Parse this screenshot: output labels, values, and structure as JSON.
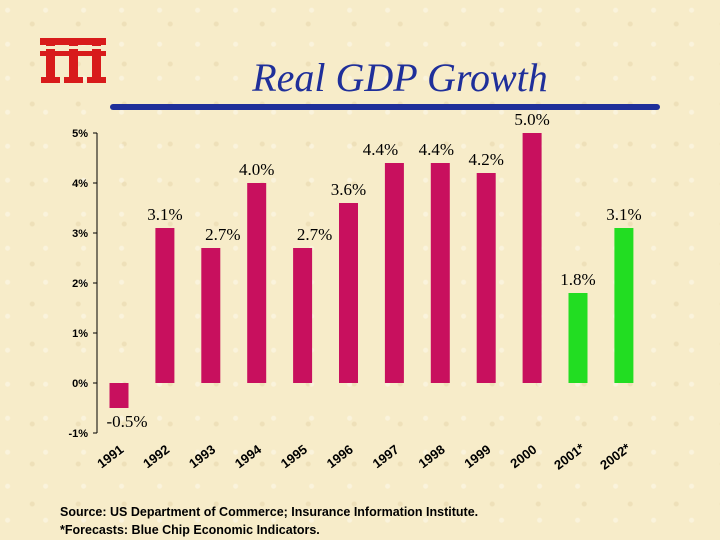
{
  "colors": {
    "background": "#f7ecc9",
    "title": "#1f2f9a",
    "actual_bar": "#c8105e",
    "forecast_bar": "#22dd22",
    "logo": "#d81b1b"
  },
  "logo": {
    "icon": "iii-logo"
  },
  "header": {
    "title": "Real GDP Growth"
  },
  "chart_data": {
    "type": "bar",
    "title": "Real GDP Growth",
    "xlabel": "",
    "ylabel": "",
    "ylim": [
      -1,
      5
    ],
    "yticks": [
      "5%",
      "4%",
      "3%",
      "2%",
      "1%",
      "0%",
      "-1%"
    ],
    "ytick_values": [
      5,
      4,
      3,
      2,
      1,
      0,
      -1
    ],
    "grid": false,
    "categories": [
      "1991",
      "1992",
      "1993",
      "1994",
      "1995",
      "1996",
      "1997",
      "1998",
      "1999",
      "2000",
      "2001*",
      "2002*"
    ],
    "values": [
      -0.5,
      3.1,
      2.7,
      4.0,
      2.7,
      3.6,
      4.4,
      4.4,
      4.2,
      5.0,
      1.8,
      3.1
    ],
    "data_labels": [
      "-0.5%",
      "3.1%",
      "2.7%",
      "4.0%",
      "2.7%",
      "3.6%",
      "4.4%",
      "4.4%",
      "4.2%",
      "5.0%",
      "1.8%",
      "3.1%"
    ],
    "forecast": [
      false,
      false,
      false,
      false,
      false,
      false,
      false,
      false,
      false,
      false,
      true,
      true
    ]
  },
  "footer": {
    "source": "Source: US Department of Commerce; Insurance Information Institute.",
    "note": "*Forecasts: Blue Chip Economic Indicators."
  }
}
